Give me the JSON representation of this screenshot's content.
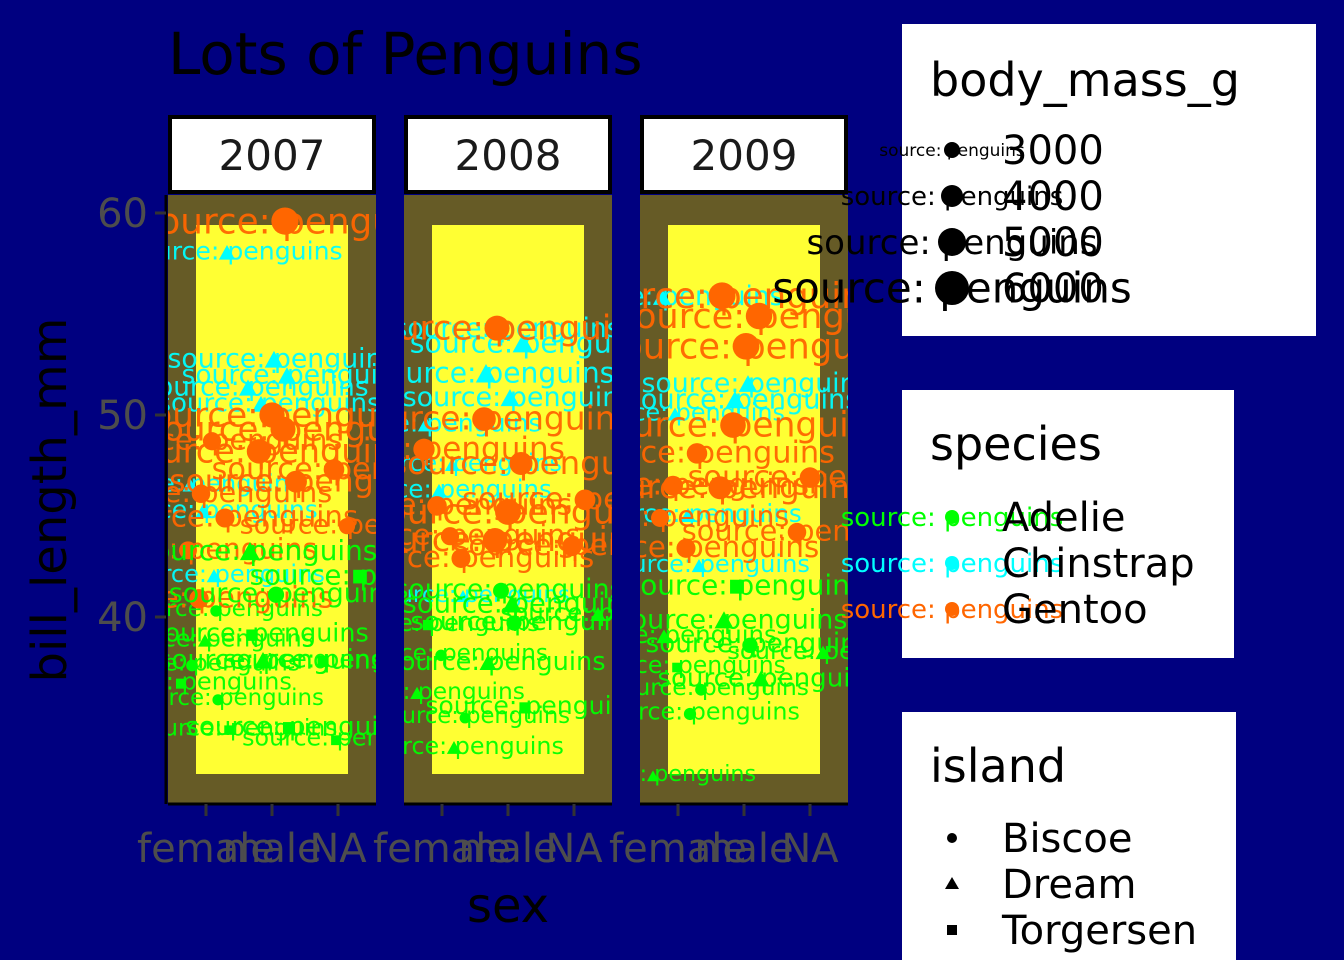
{
  "chart_data": {
    "type": "scatter",
    "title": "Lots of Penguins",
    "xlabel": "sex",
    "ylabel": "bill_length_mm",
    "x_categories": [
      "female",
      "male",
      "NA"
    ],
    "y_ticks": [
      40,
      50,
      60
    ],
    "ylim": [
      31,
      61.5
    ],
    "facets": [
      "2007",
      "2008",
      "2009"
    ],
    "point_label": "source: penguins",
    "legends": {
      "size": {
        "title": "body_mass_g",
        "entries": [
          "3000",
          "4000",
          "5000",
          "6000"
        ]
      },
      "color": {
        "title": "species",
        "entries": [
          "Adelie",
          "Chinstrap",
          "Gentoo"
        ]
      },
      "shape": {
        "title": "island",
        "entries": [
          "Biscoe",
          "Dream",
          "Torgersen"
        ]
      }
    },
    "colors": {
      "background": "#000080",
      "panel_fill": "#665b26",
      "inner_panel": "#ffff33",
      "Adelie": "#00ff00",
      "Chinstrap": "#00ffff",
      "Gentoo": "#ff6600"
    },
    "series": [
      {
        "facet": "2007",
        "points": [
          {
            "x": "female",
            "y": 36.7,
            "species": "Adelie",
            "island": "Torgersen",
            "mass": 3450
          },
          {
            "x": "female",
            "y": 35.9,
            "species": "Adelie",
            "island": "Biscoe",
            "mass": 3200
          },
          {
            "x": "female",
            "y": 38.8,
            "species": "Adelie",
            "island": "Dream",
            "mass": 3350
          },
          {
            "x": "female",
            "y": 37.6,
            "species": "Adelie",
            "island": "Biscoe",
            "mass": 3300
          },
          {
            "x": "female",
            "y": 34.4,
            "species": "Adelie",
            "island": "Torgersen",
            "mass": 3325
          },
          {
            "x": "female",
            "y": 40.3,
            "species": "Adelie",
            "island": "Biscoe",
            "mass": 3250
          },
          {
            "x": "female",
            "y": 45.2,
            "species": "Chinstrap",
            "island": "Dream",
            "mass": 3650
          },
          {
            "x": "female",
            "y": 46.5,
            "species": "Chinstrap",
            "island": "Dream",
            "mass": 3500
          },
          {
            "x": "female",
            "y": 58.0,
            "species": "Chinstrap",
            "island": "Dream",
            "mass": 3700
          },
          {
            "x": "female",
            "y": 42.0,
            "species": "Chinstrap",
            "island": "Dream",
            "mass": 3450
          },
          {
            "x": "female",
            "y": 46.1,
            "species": "Gentoo",
            "island": "Biscoe",
            "mass": 4500
          },
          {
            "x": "female",
            "y": 43.3,
            "species": "Gentoo",
            "island": "Biscoe",
            "mass": 4400
          },
          {
            "x": "female",
            "y": 44.9,
            "species": "Gentoo",
            "island": "Biscoe",
            "mass": 4600
          },
          {
            "x": "female",
            "y": 48.7,
            "species": "Gentoo",
            "island": "Biscoe",
            "mass": 4450
          },
          {
            "x": "female",
            "y": 40.9,
            "species": "Gentoo",
            "island": "Biscoe",
            "mass": 4650
          },
          {
            "x": "male",
            "y": 39.1,
            "species": "Adelie",
            "island": "Torgersen",
            "mass": 3750
          },
          {
            "x": "male",
            "y": 34.5,
            "species": "Adelie",
            "island": "Torgersen",
            "mass": 3900
          },
          {
            "x": "male",
            "y": 41.1,
            "species": "Adelie",
            "island": "Biscoe",
            "mass": 4100
          },
          {
            "x": "male",
            "y": 37.8,
            "species": "Adelie",
            "island": "Dream",
            "mass": 4000
          },
          {
            "x": "male",
            "y": 43.2,
            "species": "Adelie",
            "island": "Dream",
            "mass": 4300
          },
          {
            "x": "male",
            "y": 51.9,
            "species": "Chinstrap",
            "island": "Dream",
            "mass": 4000
          },
          {
            "x": "male",
            "y": 52.7,
            "species": "Chinstrap",
            "island": "Dream",
            "mass": 4050
          },
          {
            "x": "male",
            "y": 50.5,
            "species": "Chinstrap",
            "island": "Dream",
            "mass": 3900
          },
          {
            "x": "male",
            "y": 51.3,
            "species": "Chinstrap",
            "island": "Dream",
            "mass": 3950
          },
          {
            "x": "male",
            "y": 59.6,
            "species": "Gentoo",
            "island": "Biscoe",
            "mass": 6050
          },
          {
            "x": "male",
            "y": 50.0,
            "species": "Gentoo",
            "island": "Biscoe",
            "mass": 5700
          },
          {
            "x": "male",
            "y": 48.2,
            "species": "Gentoo",
            "island": "Biscoe",
            "mass": 5550
          },
          {
            "x": "male",
            "y": 46.7,
            "species": "Gentoo",
            "island": "Biscoe",
            "mass": 5100
          },
          {
            "x": "male",
            "y": 49.3,
            "species": "Gentoo",
            "island": "Biscoe",
            "mass": 5650
          },
          {
            "x": "NA",
            "y": 33.9,
            "species": "Adelie",
            "island": "Torgersen",
            "mass": 3400
          },
          {
            "x": "NA",
            "y": 37.8,
            "species": "Adelie",
            "island": "Torgersen",
            "mass": 3700
          },
          {
            "x": "NA",
            "y": 42.0,
            "species": "Adelie",
            "island": "Torgersen",
            "mass": 4250
          },
          {
            "x": "NA",
            "y": 44.5,
            "species": "Gentoo",
            "island": "Biscoe",
            "mass": 4100
          },
          {
            "x": "NA",
            "y": 47.3,
            "species": "Gentoo",
            "island": "Biscoe",
            "mass": 4875
          }
        ]
      },
      {
        "facet": "2008",
        "points": [
          {
            "x": "female",
            "y": 36.2,
            "species": "Adelie",
            "island": "Dream",
            "mass": 3300
          },
          {
            "x": "female",
            "y": 33.5,
            "species": "Adelie",
            "island": "Dream",
            "mass": 3400
          },
          {
            "x": "female",
            "y": 38.1,
            "species": "Adelie",
            "island": "Biscoe",
            "mass": 3250
          },
          {
            "x": "female",
            "y": 39.6,
            "species": "Adelie",
            "island": "Torgersen",
            "mass": 3500
          },
          {
            "x": "female",
            "y": 35.0,
            "species": "Adelie",
            "island": "Biscoe",
            "mass": 3150
          },
          {
            "x": "female",
            "y": 47.5,
            "species": "Chinstrap",
            "island": "Dream",
            "mass": 3400
          },
          {
            "x": "female",
            "y": 46.2,
            "species": "Chinstrap",
            "island": "Dream",
            "mass": 3550
          },
          {
            "x": "female",
            "y": 49.5,
            "species": "Chinstrap",
            "island": "Dream",
            "mass": 3700
          },
          {
            "x": "female",
            "y": 41.0,
            "species": "Chinstrap",
            "island": "Dream",
            "mass": 3250
          },
          {
            "x": "female",
            "y": 44.0,
            "species": "Gentoo",
            "island": "Biscoe",
            "mass": 4450
          },
          {
            "x": "female",
            "y": 45.5,
            "species": "Gentoo",
            "island": "Biscoe",
            "mass": 4700
          },
          {
            "x": "female",
            "y": 48.3,
            "species": "Gentoo",
            "island": "Biscoe",
            "mass": 5000
          },
          {
            "x": "female",
            "y": 42.9,
            "species": "Gentoo",
            "island": "Biscoe",
            "mass": 4600
          },
          {
            "x": "male",
            "y": 39.7,
            "species": "Adelie",
            "island": "Biscoe",
            "mass": 3900
          },
          {
            "x": "male",
            "y": 41.3,
            "species": "Adelie",
            "island": "Biscoe",
            "mass": 4050
          },
          {
            "x": "male",
            "y": 37.7,
            "species": "Adelie",
            "island": "Dream",
            "mass": 3800
          },
          {
            "x": "male",
            "y": 35.5,
            "species": "Adelie",
            "island": "Torgersen",
            "mass": 3700
          },
          {
            "x": "male",
            "y": 40.6,
            "species": "Adelie",
            "island": "Dream",
            "mass": 4200
          },
          {
            "x": "male",
            "y": 54.2,
            "species": "Chinstrap",
            "island": "Dream",
            "mass": 4000
          },
          {
            "x": "male",
            "y": 52.0,
            "species": "Chinstrap",
            "island": "Dream",
            "mass": 4350
          },
          {
            "x": "male",
            "y": 53.5,
            "species": "Chinstrap",
            "island": "Dream",
            "mass": 4400
          },
          {
            "x": "male",
            "y": 50.8,
            "species": "Chinstrap",
            "island": "Dream",
            "mass": 4100
          },
          {
            "x": "male",
            "y": 54.3,
            "species": "Gentoo",
            "island": "Biscoe",
            "mass": 5650
          },
          {
            "x": "male",
            "y": 49.8,
            "species": "Gentoo",
            "island": "Biscoe",
            "mass": 5400
          },
          {
            "x": "male",
            "y": 47.6,
            "species": "Gentoo",
            "island": "Biscoe",
            "mass": 5300
          },
          {
            "x": "male",
            "y": 45.2,
            "species": "Gentoo",
            "island": "Biscoe",
            "mass": 5800
          },
          {
            "x": "male",
            "y": 43.8,
            "species": "Gentoo",
            "island": "Biscoe",
            "mass": 5550
          },
          {
            "x": "NA",
            "y": 40.1,
            "species": "Adelie",
            "island": "Dream",
            "mass": 3600
          },
          {
            "x": "NA",
            "y": 45.8,
            "species": "Gentoo",
            "island": "Biscoe",
            "mass": 4900
          },
          {
            "x": "NA",
            "y": 43.5,
            "species": "Gentoo",
            "island": "Biscoe",
            "mass": 4700
          }
        ]
      },
      {
        "facet": "2009",
        "points": [
          {
            "x": "female",
            "y": 32.1,
            "species": "Adelie",
            "island": "Dream",
            "mass": 3050
          },
          {
            "x": "female",
            "y": 35.2,
            "species": "Adelie",
            "island": "Biscoe",
            "mass": 3400
          },
          {
            "x": "female",
            "y": 37.5,
            "species": "Adelie",
            "island": "Torgersen",
            "mass": 3350
          },
          {
            "x": "female",
            "y": 39.0,
            "species": "Adelie",
            "island": "Dream",
            "mass": 3550
          },
          {
            "x": "female",
            "y": 36.4,
            "species": "Adelie",
            "island": "Biscoe",
            "mass": 3300
          },
          {
            "x": "female",
            "y": 45.0,
            "species": "Chinstrap",
            "island": "Dream",
            "mass": 3600
          },
          {
            "x": "female",
            "y": 50.0,
            "species": "Chinstrap",
            "island": "Dream",
            "mass": 3400
          },
          {
            "x": "female",
            "y": 55.8,
            "species": "Chinstrap",
            "island": "Dream",
            "mass": 4000
          },
          {
            "x": "female",
            "y": 42.5,
            "species": "Chinstrap",
            "island": "Dream",
            "mass": 3450
          },
          {
            "x": "female",
            "y": 43.4,
            "species": "Gentoo",
            "island": "Biscoe",
            "mass": 4600
          },
          {
            "x": "female",
            "y": 46.5,
            "species": "Gentoo",
            "island": "Biscoe",
            "mass": 4750
          },
          {
            "x": "female",
            "y": 44.9,
            "species": "Gentoo",
            "island": "Biscoe",
            "mass": 4400
          },
          {
            "x": "female",
            "y": 48.1,
            "species": "Gentoo",
            "island": "Biscoe",
            "mass": 4850
          },
          {
            "x": "male",
            "y": 38.6,
            "species": "Adelie",
            "island": "Biscoe",
            "mass": 3950
          },
          {
            "x": "male",
            "y": 41.5,
            "species": "Adelie",
            "island": "Torgersen",
            "mass": 4300
          },
          {
            "x": "male",
            "y": 39.8,
            "species": "Adelie",
            "island": "Dream",
            "mass": 4100
          },
          {
            "x": "male",
            "y": 36.9,
            "species": "Adelie",
            "island": "Dream",
            "mass": 3900
          },
          {
            "x": "male",
            "y": 51.5,
            "species": "Chinstrap",
            "island": "Dream",
            "mass": 4050
          },
          {
            "x": "male",
            "y": 50.7,
            "species": "Chinstrap",
            "island": "Dream",
            "mass": 4150
          },
          {
            "x": "male",
            "y": 55.9,
            "species": "Gentoo",
            "island": "Biscoe",
            "mass": 6000
          },
          {
            "x": "male",
            "y": 54.9,
            "species": "Gentoo",
            "island": "Biscoe",
            "mass": 5900
          },
          {
            "x": "male",
            "y": 53.4,
            "species": "Gentoo",
            "island": "Biscoe",
            "mass": 5950
          },
          {
            "x": "male",
            "y": 49.5,
            "species": "Gentoo",
            "island": "Biscoe",
            "mass": 5750
          },
          {
            "x": "male",
            "y": 46.4,
            "species": "Gentoo",
            "island": "Biscoe",
            "mass": 5300
          },
          {
            "x": "NA",
            "y": 38.2,
            "species": "Adelie",
            "island": "Dream",
            "mass": 3500
          },
          {
            "x": "NA",
            "y": 46.9,
            "species": "Gentoo",
            "island": "Biscoe",
            "mass": 4875
          },
          {
            "x": "NA",
            "y": 44.2,
            "species": "Gentoo",
            "island": "Biscoe",
            "mass": 4500
          }
        ]
      }
    ]
  }
}
